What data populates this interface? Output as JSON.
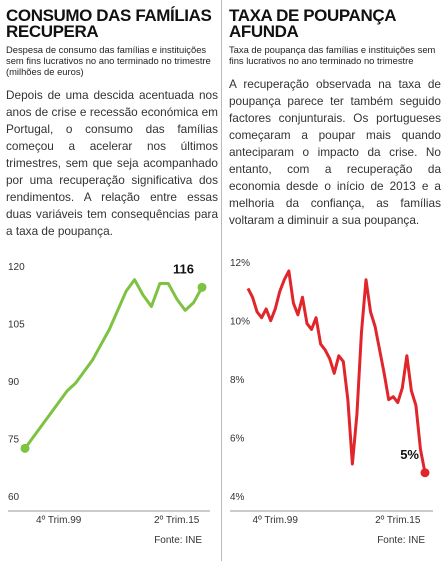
{
  "chart_data": [
    {
      "type": "line",
      "title": "CONSUMO DAS FAMÍLIAS RECUPERA",
      "subtitle": "Despesa de consumo das famílias e instituições sem fins lucrativos no ano terminado no trimestre (milhões de euros)",
      "text": "Depois de uma descida acentuada nos anos de crise e recessão económica em Portugal, o consumo das famílias começou a acelerar nos últimos trimestres, sem que seja acompanhado por uma recuperação significativa dos rendimentos. A relação entre essas duas variáveis tem consequências para a taxa de poupança.",
      "categories": [
        null,
        null,
        null,
        null,
        "4º Trim.99",
        null,
        null,
        null,
        null,
        null,
        null,
        null,
        null,
        null,
        null,
        null,
        null,
        null,
        "2º Trim.15",
        null,
        null,
        null
      ],
      "values": [
        74,
        77,
        80,
        83,
        86,
        89,
        91,
        94,
        97,
        101,
        105,
        110,
        115,
        118,
        114,
        111,
        117,
        117,
        113,
        110,
        112,
        116
      ],
      "color": "#7dc242",
      "ylim": [
        60,
        120
      ],
      "yticks": [
        60,
        75,
        90,
        105,
        120
      ],
      "grid": false,
      "source": "Fonte: INE"
    },
    {
      "type": "line",
      "title": "TAXA DE POUPANÇA AFUNDA",
      "subtitle": "Taxa de poupança das famílias e instituições sem fins lucrativos no ano terminado no trimestre",
      "text": "A recuperação observada na taxa de poupança parece ter também seguido factores conjunturais. Os portugueses começaram a poupar mais quando anteciparam o impacto da crise. No entanto, com a recuperação da economia desde o início de 2013 e a melhoria da confiança, as famílias voltaram a diminuir a sua poupança.",
      "categories": [
        null,
        null,
        null,
        null,
        null,
        null,
        "4º Trim.99",
        null,
        null,
        null,
        null,
        null,
        null,
        null,
        null,
        null,
        null,
        null,
        null,
        null,
        null,
        null,
        null,
        null,
        null,
        null,
        null,
        null,
        null,
        null,
        null,
        null,
        null,
        "2º Trim.15",
        null,
        null,
        null,
        null,
        null,
        null
      ],
      "values": [
        11.3,
        11.0,
        10.5,
        10.3,
        10.6,
        10.2,
        10.6,
        11.2,
        11.6,
        11.9,
        10.8,
        10.4,
        11.0,
        10.1,
        9.9,
        10.3,
        9.4,
        9.2,
        8.9,
        8.4,
        9.0,
        8.8,
        7.5,
        5.3,
        7.0,
        9.8,
        11.6,
        10.5,
        10.0,
        9.2,
        8.4,
        7.5,
        7.6,
        7.4,
        7.9,
        9.0,
        7.8,
        7.3,
        5.8,
        5.0
      ],
      "value_labels": [
        null,
        null,
        null,
        null,
        null,
        null,
        null,
        null,
        null,
        null,
        null,
        null,
        null,
        null,
        null,
        null,
        null,
        null,
        null,
        null,
        null,
        null,
        null,
        null,
        null,
        null,
        null,
        null,
        null,
        null,
        null,
        null,
        null,
        null,
        null,
        null,
        null,
        null,
        null,
        "5%"
      ],
      "color": "#e0262b",
      "ylim": [
        4,
        12
      ],
      "yticks": [
        {
          "value": 4,
          "label": "4%"
        },
        {
          "value": 6,
          "label": "6%"
        },
        {
          "value": 8,
          "label": "8%"
        },
        {
          "value": 10,
          "label": "10%"
        },
        {
          "value": 12,
          "label": "12%"
        }
      ],
      "grid": false,
      "source": "Fonte: INE"
    }
  ]
}
